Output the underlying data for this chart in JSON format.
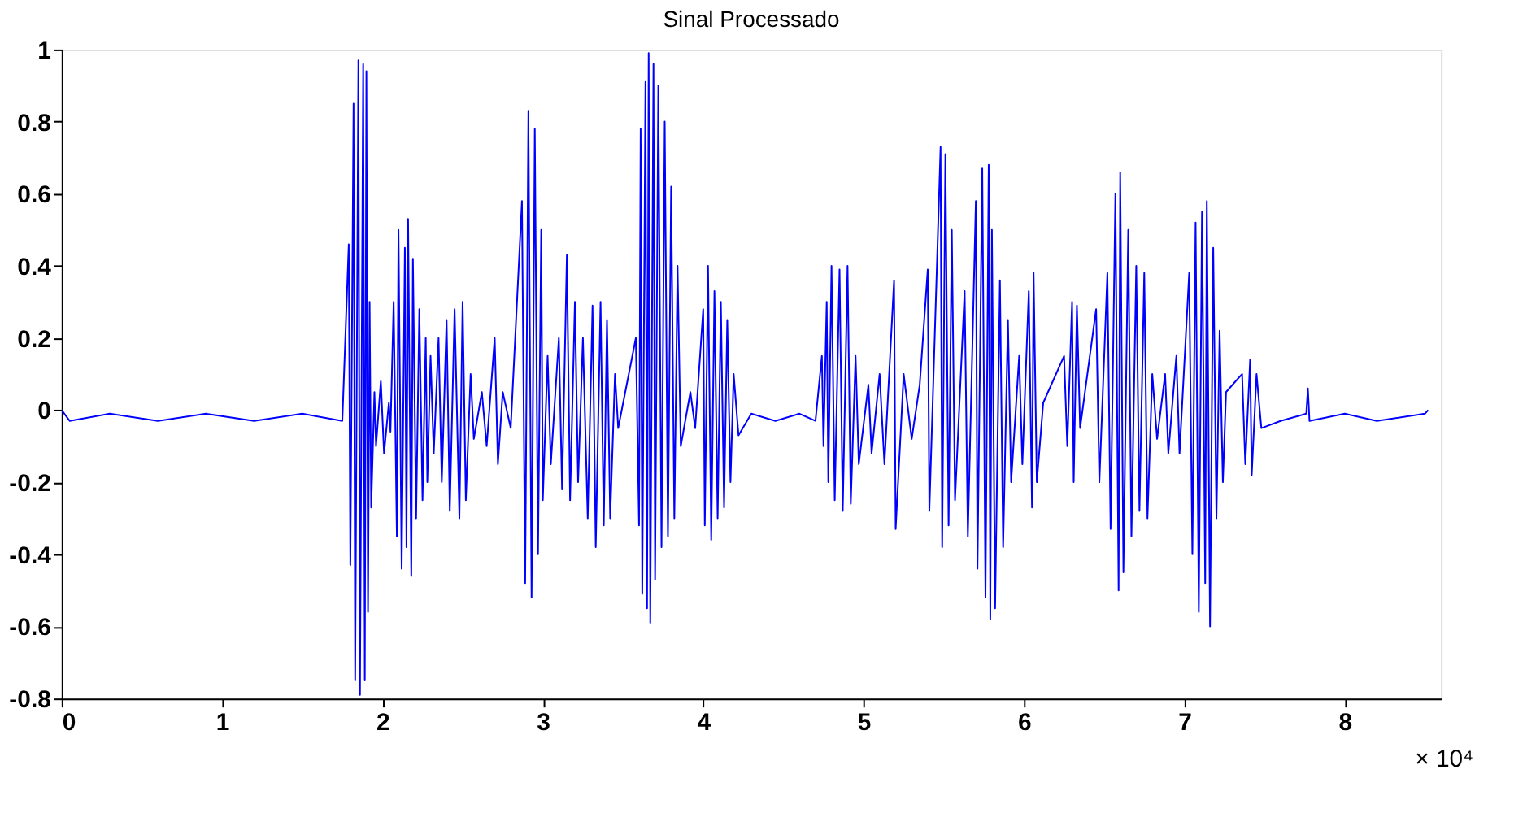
{
  "chart_data": {
    "type": "line",
    "title": "Sinal Processado",
    "color": "#0000ff",
    "grid": false,
    "xlim": [
      0,
      8.6
    ],
    "xticks": [
      0,
      1,
      2,
      3,
      4,
      5,
      6,
      7,
      8
    ],
    "ylim": [
      -0.8,
      1
    ],
    "yticks": [
      -0.8,
      -0.6,
      -0.4,
      -0.2,
      0,
      0.2,
      0.4,
      0.6,
      0.8,
      1
    ],
    "annotations": [
      "× 10⁴"
    ],
    "x": [
      0,
      0.05,
      0.3,
      0.6,
      0.9,
      1.2,
      1.5,
      1.75,
      1.79,
      1.8,
      1.82,
      1.83,
      1.85,
      1.86,
      1.88,
      1.89,
      1.9,
      1.91,
      1.92,
      1.93,
      1.95,
      1.96,
      1.99,
      2.01,
      2.04,
      2.05,
      2.07,
      2.09,
      2.1,
      2.12,
      2.14,
      2.15,
      2.16,
      2.18,
      2.19,
      2.21,
      2.23,
      2.25,
      2.27,
      2.28,
      2.3,
      2.32,
      2.35,
      2.37,
      2.4,
      2.42,
      2.45,
      2.48,
      2.5,
      2.52,
      2.55,
      2.57,
      2.62,
      2.65,
      2.7,
      2.72,
      2.75,
      2.8,
      2.87,
      2.89,
      2.91,
      2.93,
      2.95,
      2.97,
      2.99,
      3.0,
      3.03,
      3.05,
      3.1,
      3.12,
      3.15,
      3.17,
      3.2,
      3.22,
      3.25,
      3.28,
      3.31,
      3.33,
      3.36,
      3.38,
      3.4,
      3.42,
      3.45,
      3.47,
      3.58,
      3.6,
      3.61,
      3.62,
      3.64,
      3.65,
      3.66,
      3.67,
      3.69,
      3.7,
      3.72,
      3.74,
      3.76,
      3.78,
      3.8,
      3.82,
      3.84,
      3.86,
      3.92,
      3.95,
      4.0,
      4.01,
      4.03,
      4.05,
      4.07,
      4.09,
      4.11,
      4.13,
      4.15,
      4.17,
      4.19,
      4.22,
      4.3,
      4.45,
      4.6,
      4.7,
      4.74,
      4.75,
      4.77,
      4.78,
      4.8,
      4.82,
      4.85,
      4.87,
      4.9,
      4.92,
      4.95,
      4.97,
      5.03,
      5.05,
      5.1,
      5.13,
      5.19,
      5.2,
      5.25,
      5.3,
      5.35,
      5.4,
      5.41,
      5.48,
      5.49,
      5.51,
      5.53,
      5.55,
      5.57,
      5.63,
      5.65,
      5.7,
      5.71,
      5.74,
      5.76,
      5.78,
      5.79,
      5.8,
      5.82,
      5.85,
      5.87,
      5.9,
      5.92,
      5.97,
      5.99,
      6.03,
      6.05,
      6.06,
      6.08,
      6.12,
      6.25,
      6.27,
      6.3,
      6.31,
      6.33,
      6.35,
      6.45,
      6.47,
      6.52,
      6.54,
      6.57,
      6.59,
      6.6,
      6.62,
      6.65,
      6.67,
      6.7,
      6.72,
      6.75,
      6.77,
      6.8,
      6.83,
      6.88,
      6.9,
      6.95,
      6.97,
      7.03,
      7.05,
      7.07,
      7.09,
      7.11,
      7.13,
      7.14,
      7.16,
      7.18,
      7.2,
      7.22,
      7.24,
      7.26,
      7.36,
      7.38,
      7.41,
      7.42,
      7.45,
      7.48,
      7.6,
      7.76,
      7.77,
      7.78,
      8.0,
      8.2,
      8.5,
      8.52
    ],
    "values": [
      0,
      -0.03,
      -0.01,
      -0.03,
      -0.01,
      -0.03,
      -0.01,
      -0.03,
      0.46,
      -0.43,
      0.85,
      -0.75,
      0.97,
      -0.79,
      0.96,
      -0.75,
      0.94,
      -0.56,
      0.3,
      -0.27,
      0.05,
      -0.1,
      0.08,
      -0.12,
      0.02,
      -0.06,
      0.3,
      -0.35,
      0.5,
      -0.44,
      0.45,
      -0.38,
      0.53,
      -0.46,
      0.42,
      -0.3,
      0.28,
      -0.25,
      0.2,
      -0.2,
      0.15,
      -0.12,
      0.2,
      -0.2,
      0.25,
      -0.28,
      0.28,
      -0.3,
      0.3,
      -0.25,
      0.1,
      -0.08,
      0.05,
      -0.1,
      0.2,
      -0.15,
      0.05,
      -0.05,
      0.58,
      -0.48,
      0.83,
      -0.52,
      0.78,
      -0.4,
      0.5,
      -0.25,
      0.15,
      -0.15,
      0.2,
      -0.22,
      0.43,
      -0.25,
      0.3,
      -0.2,
      0.2,
      -0.3,
      0.29,
      -0.38,
      0.3,
      -0.32,
      0.25,
      -0.3,
      0.1,
      -0.05,
      0.2,
      -0.32,
      0.78,
      -0.51,
      0.91,
      -0.55,
      0.99,
      -0.59,
      0.96,
      -0.47,
      0.9,
      -0.38,
      0.8,
      -0.35,
      0.62,
      -0.3,
      0.4,
      -0.1,
      0.05,
      -0.05,
      0.28,
      -0.32,
      0.4,
      -0.36,
      0.33,
      -0.3,
      0.3,
      -0.27,
      0.25,
      -0.2,
      0.1,
      -0.07,
      -0.01,
      -0.03,
      -0.01,
      -0.03,
      0.15,
      -0.1,
      0.3,
      -0.2,
      0.4,
      -0.25,
      0.39,
      -0.28,
      0.4,
      -0.26,
      0.15,
      -0.15,
      0.07,
      -0.12,
      0.1,
      -0.15,
      0.36,
      -0.33,
      0.1,
      -0.08,
      0.07,
      0.39,
      -0.28,
      0.73,
      -0.38,
      0.71,
      -0.32,
      0.5,
      -0.25,
      0.33,
      -0.35,
      0.58,
      -0.44,
      0.67,
      -0.52,
      0.68,
      -0.58,
      0.5,
      -0.55,
      0.36,
      -0.38,
      0.25,
      -0.2,
      0.15,
      -0.15,
      0.33,
      -0.27,
      0.38,
      -0.2,
      0.02,
      0.15,
      -0.1,
      0.3,
      -0.2,
      0.29,
      -0.05,
      0.28,
      -0.2,
      0.38,
      -0.33,
      0.6,
      -0.5,
      0.66,
      -0.45,
      0.5,
      -0.35,
      0.4,
      -0.28,
      0.38,
      -0.3,
      0.1,
      -0.08,
      0.1,
      -0.12,
      0.15,
      -0.12,
      0.38,
      -0.4,
      0.52,
      -0.56,
      0.55,
      -0.48,
      0.58,
      -0.6,
      0.45,
      -0.3,
      0.22,
      -0.2,
      0.05,
      0.1,
      -0.15,
      0.14,
      -0.18,
      0.1,
      -0.05,
      -0.03,
      -0.01,
      0.06,
      -0.03,
      -0.01,
      -0.03,
      -0.01,
      0
    ]
  }
}
